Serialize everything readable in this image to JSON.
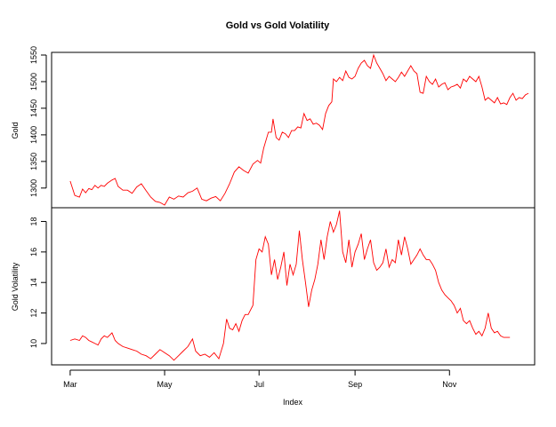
{
  "chart_data": {
    "type": "line",
    "title": "Gold vs Gold Volatility",
    "xlabel": "Index",
    "x_ticks": [
      "Mar",
      "May",
      "Jul",
      "Sep",
      "Nov"
    ],
    "x_tick_positions": [
      0,
      61,
      122,
      184,
      245
    ],
    "x_range": [
      -12,
      300
    ],
    "color": "#ff0000",
    "series": [
      {
        "name": "Gold",
        "ylim": [
          1263,
          1555
        ],
        "y_ticks": [
          1300,
          1350,
          1400,
          1450,
          1500,
          1550
        ],
        "points": [
          [
            0,
            1313
          ],
          [
            3,
            1286
          ],
          [
            6,
            1283
          ],
          [
            8,
            1298
          ],
          [
            10,
            1291
          ],
          [
            12,
            1299
          ],
          [
            14,
            1297
          ],
          [
            16,
            1305
          ],
          [
            18,
            1300
          ],
          [
            20,
            1305
          ],
          [
            22,
            1303
          ],
          [
            24,
            1309
          ],
          [
            27,
            1315
          ],
          [
            29,
            1318
          ],
          [
            31,
            1303
          ],
          [
            34,
            1296
          ],
          [
            37,
            1296
          ],
          [
            40,
            1290
          ],
          [
            43,
            1302
          ],
          [
            46,
            1308
          ],
          [
            49,
            1295
          ],
          [
            52,
            1283
          ],
          [
            55,
            1275
          ],
          [
            58,
            1273
          ],
          [
            61,
            1268
          ],
          [
            64,
            1283
          ],
          [
            67,
            1279
          ],
          [
            70,
            1285
          ],
          [
            73,
            1283
          ],
          [
            76,
            1291
          ],
          [
            79,
            1294
          ],
          [
            82,
            1300
          ],
          [
            85,
            1279
          ],
          [
            88,
            1276
          ],
          [
            91,
            1281
          ],
          [
            94,
            1284
          ],
          [
            97,
            1276
          ],
          [
            100,
            1290
          ],
          [
            103,
            1308
          ],
          [
            106,
            1330
          ],
          [
            109,
            1340
          ],
          [
            112,
            1333
          ],
          [
            115,
            1328
          ],
          [
            118,
            1345
          ],
          [
            121,
            1352
          ],
          [
            123,
            1347
          ],
          [
            125,
            1375
          ],
          [
            128,
            1405
          ],
          [
            130,
            1405
          ],
          [
            131,
            1430
          ],
          [
            133,
            1395
          ],
          [
            135,
            1390
          ],
          [
            137,
            1405
          ],
          [
            139,
            1402
          ],
          [
            141,
            1395
          ],
          [
            143,
            1408
          ],
          [
            145,
            1408
          ],
          [
            147,
            1415
          ],
          [
            149,
            1413
          ],
          [
            151,
            1440
          ],
          [
            153,
            1427
          ],
          [
            155,
            1430
          ],
          [
            157,
            1420
          ],
          [
            159,
            1422
          ],
          [
            161,
            1418
          ],
          [
            163,
            1410
          ],
          [
            165,
            1440
          ],
          [
            167,
            1455
          ],
          [
            169,
            1462
          ],
          [
            170,
            1505
          ],
          [
            172,
            1500
          ],
          [
            174,
            1508
          ],
          [
            176,
            1502
          ],
          [
            178,
            1520
          ],
          [
            180,
            1508
          ],
          [
            182,
            1505
          ],
          [
            184,
            1510
          ],
          [
            186,
            1525
          ],
          [
            188,
            1535
          ],
          [
            190,
            1540
          ],
          [
            192,
            1530
          ],
          [
            194,
            1525
          ],
          [
            196,
            1550
          ],
          [
            198,
            1535
          ],
          [
            200,
            1525
          ],
          [
            202,
            1515
          ],
          [
            204,
            1502
          ],
          [
            206,
            1510
          ],
          [
            208,
            1505
          ],
          [
            210,
            1500
          ],
          [
            212,
            1508
          ],
          [
            214,
            1518
          ],
          [
            216,
            1510
          ],
          [
            218,
            1520
          ],
          [
            220,
            1530
          ],
          [
            222,
            1520
          ],
          [
            224,
            1515
          ],
          [
            226,
            1480
          ],
          [
            228,
            1478
          ],
          [
            230,
            1510
          ],
          [
            232,
            1500
          ],
          [
            234,
            1495
          ],
          [
            236,
            1505
          ],
          [
            238,
            1490
          ],
          [
            240,
            1495
          ],
          [
            242,
            1498
          ],
          [
            244,
            1485
          ],
          [
            246,
            1490
          ],
          [
            248,
            1492
          ],
          [
            250,
            1495
          ],
          [
            252,
            1488
          ],
          [
            254,
            1505
          ],
          [
            256,
            1500
          ],
          [
            258,
            1510
          ],
          [
            260,
            1505
          ],
          [
            262,
            1500
          ],
          [
            264,
            1510
          ],
          [
            266,
            1490
          ],
          [
            268,
            1465
          ],
          [
            270,
            1470
          ],
          [
            272,
            1465
          ],
          [
            274,
            1460
          ],
          [
            276,
            1470
          ],
          [
            278,
            1458
          ],
          [
            280,
            1460
          ],
          [
            282,
            1457
          ],
          [
            284,
            1470
          ],
          [
            286,
            1478
          ],
          [
            288,
            1465
          ],
          [
            290,
            1470
          ],
          [
            292,
            1468
          ],
          [
            294,
            1475
          ],
          [
            296,
            1478
          ]
        ]
      },
      {
        "name": "Gold Volatility",
        "ylim": [
          8.6,
          18.9
        ],
        "y_ticks": [
          10,
          12,
          14,
          16,
          18
        ],
        "points": [
          [
            0,
            10.2
          ],
          [
            3,
            10.3
          ],
          [
            6,
            10.2
          ],
          [
            8,
            10.5
          ],
          [
            10,
            10.4
          ],
          [
            12,
            10.2
          ],
          [
            14,
            10.1
          ],
          [
            16,
            10.0
          ],
          [
            18,
            9.9
          ],
          [
            20,
            10.3
          ],
          [
            22,
            10.5
          ],
          [
            24,
            10.4
          ],
          [
            27,
            10.7
          ],
          [
            29,
            10.2
          ],
          [
            31,
            10.0
          ],
          [
            34,
            9.8
          ],
          [
            37,
            9.7
          ],
          [
            40,
            9.6
          ],
          [
            43,
            9.5
          ],
          [
            46,
            9.3
          ],
          [
            49,
            9.2
          ],
          [
            52,
            9.0
          ],
          [
            55,
            9.3
          ],
          [
            58,
            9.6
          ],
          [
            61,
            9.4
          ],
          [
            64,
            9.2
          ],
          [
            67,
            8.9
          ],
          [
            70,
            9.2
          ],
          [
            73,
            9.5
          ],
          [
            76,
            9.8
          ],
          [
            79,
            10.3
          ],
          [
            81,
            9.5
          ],
          [
            84,
            9.2
          ],
          [
            87,
            9.3
          ],
          [
            90,
            9.1
          ],
          [
            93,
            9.4
          ],
          [
            96,
            9.0
          ],
          [
            99,
            10.0
          ],
          [
            101,
            11.6
          ],
          [
            103,
            11.0
          ],
          [
            105,
            10.9
          ],
          [
            107,
            11.3
          ],
          [
            109,
            10.8
          ],
          [
            111,
            11.5
          ],
          [
            113,
            11.9
          ],
          [
            115,
            11.9
          ],
          [
            118,
            12.5
          ],
          [
            120,
            15.5
          ],
          [
            122,
            16.2
          ],
          [
            124,
            16.0
          ],
          [
            126,
            17.0
          ],
          [
            128,
            16.5
          ],
          [
            130,
            14.5
          ],
          [
            132,
            15.5
          ],
          [
            134,
            14.2
          ],
          [
            136,
            15.0
          ],
          [
            138,
            16.0
          ],
          [
            140,
            13.8
          ],
          [
            142,
            15.2
          ],
          [
            144,
            14.5
          ],
          [
            146,
            15.2
          ],
          [
            148,
            17.4
          ],
          [
            150,
            15.5
          ],
          [
            152,
            14.0
          ],
          [
            154,
            12.4
          ],
          [
            156,
            13.5
          ],
          [
            158,
            14.2
          ],
          [
            160,
            15.2
          ],
          [
            162,
            16.8
          ],
          [
            164,
            15.5
          ],
          [
            166,
            17.0
          ],
          [
            168,
            18.0
          ],
          [
            170,
            17.3
          ],
          [
            172,
            17.8
          ],
          [
            174,
            18.7
          ],
          [
            176,
            16.0
          ],
          [
            178,
            15.3
          ],
          [
            180,
            16.8
          ],
          [
            182,
            15.0
          ],
          [
            184,
            16.0
          ],
          [
            186,
            16.5
          ],
          [
            188,
            17.2
          ],
          [
            190,
            15.5
          ],
          [
            192,
            16.2
          ],
          [
            194,
            16.8
          ],
          [
            196,
            15.3
          ],
          [
            198,
            14.8
          ],
          [
            200,
            15.0
          ],
          [
            202,
            15.3
          ],
          [
            204,
            16.2
          ],
          [
            206,
            15.0
          ],
          [
            208,
            15.5
          ],
          [
            210,
            15.3
          ],
          [
            212,
            16.8
          ],
          [
            214,
            15.8
          ],
          [
            216,
            17.0
          ],
          [
            218,
            16.2
          ],
          [
            220,
            15.2
          ],
          [
            222,
            15.5
          ],
          [
            224,
            15.8
          ],
          [
            226,
            16.2
          ],
          [
            228,
            15.8
          ],
          [
            230,
            15.5
          ],
          [
            232,
            15.5
          ],
          [
            234,
            15.2
          ],
          [
            236,
            14.8
          ],
          [
            238,
            14.0
          ],
          [
            240,
            13.5
          ],
          [
            242,
            13.2
          ],
          [
            244,
            13.0
          ],
          [
            246,
            12.8
          ],
          [
            248,
            12.5
          ],
          [
            250,
            12.0
          ],
          [
            252,
            12.3
          ],
          [
            254,
            11.5
          ],
          [
            256,
            11.3
          ],
          [
            258,
            11.5
          ],
          [
            260,
            11.0
          ],
          [
            262,
            10.6
          ],
          [
            264,
            10.8
          ],
          [
            266,
            10.5
          ],
          [
            268,
            11.0
          ],
          [
            270,
            12.0
          ],
          [
            272,
            11.0
          ],
          [
            274,
            10.7
          ],
          [
            276,
            10.8
          ],
          [
            278,
            10.5
          ],
          [
            280,
            10.4
          ],
          [
            282,
            10.4
          ],
          [
            284,
            10.4
          ]
        ]
      }
    ]
  }
}
